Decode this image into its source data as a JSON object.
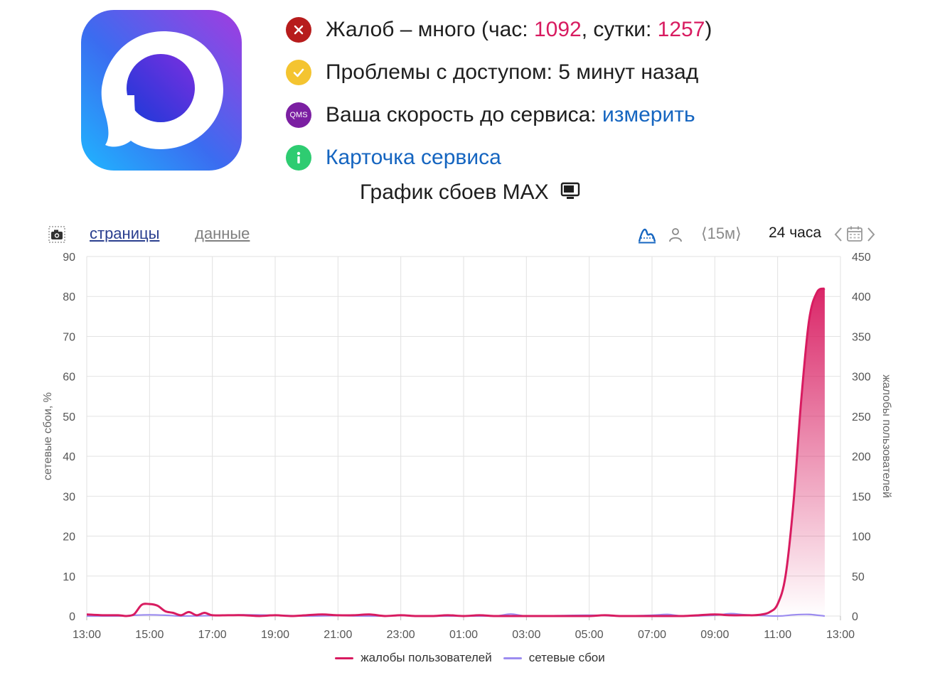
{
  "status": {
    "complaints": {
      "prefix": "Жалоб – много (час: ",
      "hour_value": "1092",
      "middle": ", сутки: ",
      "day_value": "1257",
      "suffix": ")"
    },
    "access": {
      "text": "Проблемы с доступом: 5 минут назад"
    },
    "speed": {
      "icon_label": "QMS",
      "label": "Ваша скорость до сервиса: ",
      "link": "измерить"
    },
    "card": {
      "link": "Карточка сервиса"
    }
  },
  "chart_title": "График сбоев MAX",
  "toolbar": {
    "pages_label": "страницы",
    "data_label": "данные",
    "interval_label": "⟨15м⟩",
    "range_label": "24 часа"
  },
  "colors": {
    "complaints": "#d81b60",
    "network": "#9c8cf0",
    "error": "#c62828",
    "warning": "#f4c430",
    "qms": "#7b1fa2",
    "info": "#2ecc71",
    "link": "#1565c0"
  },
  "chart_data": {
    "type": "line",
    "x_ticks": [
      "13:00",
      "15:00",
      "17:00",
      "19:00",
      "21:00",
      "23:00",
      "01:00",
      "03:00",
      "05:00",
      "07:00",
      "09:00",
      "11:00",
      "13:00"
    ],
    "y_left": {
      "label": "сетевые сбои, %",
      "min": 0,
      "max": 90,
      "ticks": [
        0,
        10,
        20,
        30,
        40,
        50,
        60,
        70,
        80,
        90
      ]
    },
    "y_right": {
      "label": "жалобы пользователей",
      "min": 0,
      "max": 450,
      "ticks": [
        0,
        50,
        100,
        150,
        200,
        250,
        300,
        350,
        400,
        450
      ]
    },
    "grid": true,
    "legend_position": "bottom",
    "series": [
      {
        "name": "жалобы пользователей",
        "axis": "right",
        "x": [
          0,
          0.5,
          1,
          1.25,
          1.5,
          1.75,
          2,
          2.25,
          2.5,
          2.75,
          3,
          3.25,
          3.5,
          3.75,
          4,
          4.5,
          5,
          5.5,
          6,
          6.5,
          7,
          7.5,
          8,
          8.5,
          9,
          9.5,
          10,
          10.5,
          11,
          11.5,
          12,
          12.5,
          13,
          13.5,
          14,
          14.5,
          15,
          15.5,
          16,
          16.5,
          17,
          17.5,
          18,
          18.5,
          19,
          19.5,
          20,
          20.5,
          21,
          21.25,
          21.5,
          21.75,
          22,
          22.25,
          22.5,
          22.75,
          23,
          23.25,
          23.5
        ],
        "y": [
          2,
          1,
          1,
          0,
          2,
          14,
          15,
          13,
          6,
          4,
          1,
          5,
          1,
          4,
          1,
          1,
          1,
          0,
          1,
          0,
          1,
          2,
          1,
          1,
          2,
          0,
          1,
          0,
          0,
          1,
          0,
          1,
          0,
          0,
          0,
          0,
          0,
          0,
          0,
          1,
          0,
          0,
          0,
          0,
          0,
          1,
          2,
          1,
          1,
          1,
          2,
          5,
          15,
          50,
          140,
          270,
          370,
          405,
          410
        ]
      },
      {
        "name": "сетевые сбои",
        "axis": "left",
        "x": [
          0,
          1,
          1.5,
          2,
          2.5,
          3,
          4,
          5,
          6,
          7,
          8,
          9,
          10,
          11,
          12,
          13,
          13.5,
          14,
          15,
          16,
          17,
          18,
          18.5,
          19,
          20,
          20.5,
          21,
          22,
          22.5,
          23,
          23.5
        ],
        "y": [
          0,
          0,
          0.2,
          0.3,
          0.2,
          0,
          0.1,
          0.3,
          0.2,
          0,
          0.1,
          0,
          0.1,
          0,
          0,
          0,
          0.5,
          0,
          0.1,
          0.2,
          0,
          0.2,
          0.4,
          0,
          0.2,
          0.6,
          0.3,
          0,
          0.3,
          0.4,
          0
        ]
      }
    ]
  }
}
